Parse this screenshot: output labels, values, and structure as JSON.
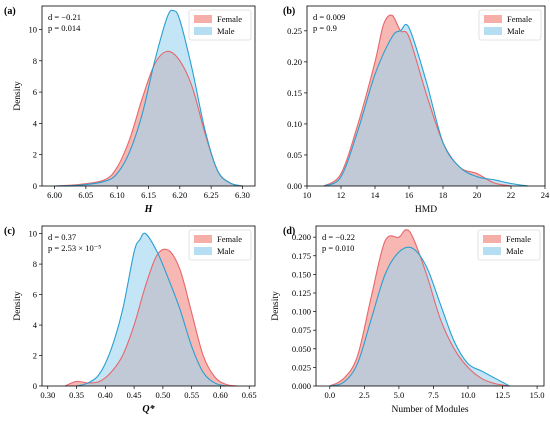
{
  "colors": {
    "female_fill": "#f4a09a",
    "female_line": "#e8666b",
    "male_fill": "#9dd3ee",
    "male_line": "#2a9fd0"
  },
  "chart_data": [
    {
      "type": "area",
      "panel": "(a)",
      "xlabel": "H",
      "xlabel_style": "italic-bold",
      "ylabel": "Density",
      "xlim": [
        5.98,
        6.32
      ],
      "ylim": [
        0,
        11.5
      ],
      "xticks": [
        6.0,
        6.05,
        6.1,
        6.15,
        6.2,
        6.25,
        6.3
      ],
      "xtick_labels": [
        "6.00",
        "6.05",
        "6.10",
        "6.15",
        "6.20",
        "6.25",
        "6.30"
      ],
      "yticks": [
        0,
        2,
        4,
        6,
        8,
        10
      ],
      "ytick_labels": [
        "0",
        "2",
        "4",
        "6",
        "8",
        "10"
      ],
      "stats": [
        "d = −0.21",
        "p = 0.014"
      ],
      "legend": [
        "Female",
        "Male"
      ],
      "legend_position": "top-right",
      "series": [
        {
          "name": "Female",
          "x": [
            6.0,
            6.04,
            6.08,
            6.1,
            6.12,
            6.14,
            6.16,
            6.18,
            6.2,
            6.22,
            6.24,
            6.26,
            6.28,
            6.3
          ],
          "y": [
            0.0,
            0.1,
            0.4,
            1.2,
            3.0,
            5.6,
            7.8,
            8.6,
            8.0,
            6.3,
            3.4,
            1.0,
            0.2,
            0.0
          ]
        },
        {
          "name": "Male",
          "x": [
            6.0,
            6.04,
            6.08,
            6.1,
            6.12,
            6.14,
            6.16,
            6.18,
            6.19,
            6.2,
            6.22,
            6.24,
            6.26,
            6.28,
            6.3
          ],
          "y": [
            0.0,
            0.05,
            0.3,
            0.8,
            2.2,
            4.6,
            8.0,
            10.8,
            11.2,
            10.6,
            7.4,
            3.6,
            1.0,
            0.2,
            0.0
          ]
        }
      ]
    },
    {
      "type": "area",
      "panel": "(b)",
      "xlabel": "HMD",
      "ylabel": "",
      "xlim": [
        10,
        24
      ],
      "ylim": [
        0,
        0.29
      ],
      "xticks": [
        10,
        12,
        14,
        16,
        18,
        20,
        22,
        24
      ],
      "xtick_labels": [
        "10",
        "12",
        "14",
        "16",
        "18",
        "20",
        "22",
        "24"
      ],
      "yticks": [
        0,
        0.05,
        0.1,
        0.15,
        0.2,
        0.25
      ],
      "ytick_labels": [
        "0.00",
        "0.05",
        "0.10",
        "0.15",
        "0.20",
        "0.25"
      ],
      "stats": [
        "d = 0.009",
        "p = 0.9"
      ],
      "legend": [
        "Female",
        "Male"
      ],
      "legend_position": "top-right",
      "series": [
        {
          "name": "Female",
          "x": [
            11,
            12,
            13,
            14,
            14.5,
            15,
            15.5,
            16,
            17,
            18,
            19,
            20,
            21,
            22
          ],
          "y": [
            0.0,
            0.02,
            0.1,
            0.2,
            0.26,
            0.275,
            0.25,
            0.24,
            0.15,
            0.07,
            0.03,
            0.02,
            0.005,
            0.0
          ]
        },
        {
          "name": "Male",
          "x": [
            11,
            12,
            13,
            14,
            15,
            15.5,
            16,
            17,
            18,
            19,
            20,
            21,
            22,
            23
          ],
          "y": [
            0.0,
            0.015,
            0.09,
            0.18,
            0.24,
            0.25,
            0.255,
            0.17,
            0.07,
            0.03,
            0.015,
            0.01,
            0.004,
            0.0
          ]
        }
      ]
    },
    {
      "type": "area",
      "panel": "(c)",
      "xlabel": "Q*",
      "xlabel_style": "italic-bold",
      "ylabel": "Density",
      "xlim": [
        0.29,
        0.66
      ],
      "ylim": [
        0,
        10.5
      ],
      "xticks": [
        0.3,
        0.35,
        0.4,
        0.45,
        0.5,
        0.55,
        0.6,
        0.65
      ],
      "xtick_labels": [
        "0.30",
        "0.35",
        "0.40",
        "0.45",
        "0.50",
        "0.55",
        "0.60",
        "0.65"
      ],
      "yticks": [
        0,
        2,
        4,
        6,
        8,
        10
      ],
      "ytick_labels": [
        "0",
        "2",
        "4",
        "6",
        "8",
        "10"
      ],
      "stats": [
        "d = 0.37",
        "p = 2.53 × 10⁻⁵"
      ],
      "legend": [
        "Female",
        "Male"
      ],
      "legend_position": "top-right",
      "series": [
        {
          "name": "Female",
          "x": [
            0.33,
            0.35,
            0.37,
            0.39,
            0.41,
            0.43,
            0.45,
            0.47,
            0.49,
            0.51,
            0.53,
            0.55,
            0.57,
            0.59,
            0.61,
            0.63
          ],
          "y": [
            0.0,
            0.3,
            0.2,
            0.3,
            0.9,
            2.0,
            4.0,
            6.6,
            8.6,
            8.9,
            7.6,
            4.8,
            2.0,
            0.6,
            0.1,
            0.0
          ]
        },
        {
          "name": "Male",
          "x": [
            0.35,
            0.37,
            0.39,
            0.41,
            0.43,
            0.45,
            0.46,
            0.47,
            0.49,
            0.51,
            0.53,
            0.55,
            0.57,
            0.59,
            0.61
          ],
          "y": [
            0.0,
            0.2,
            0.8,
            2.4,
            5.0,
            8.8,
            9.6,
            10.0,
            8.8,
            7.0,
            5.0,
            2.6,
            0.9,
            0.2,
            0.0
          ]
        }
      ]
    },
    {
      "type": "area",
      "panel": "(d)",
      "xlabel": "Number of Modules",
      "ylabel": "Density",
      "xlim": [
        -1,
        15.5
      ],
      "ylim": [
        0,
        0.215
      ],
      "xticks": [
        0,
        2.5,
        5,
        7.5,
        10,
        12.5,
        15
      ],
      "xtick_labels": [
        "0.0",
        "2.5",
        "5.0",
        "7.5",
        "10.0",
        "12.5",
        "15.0"
      ],
      "yticks": [
        0,
        0.025,
        0.05,
        0.075,
        0.1,
        0.125,
        0.15,
        0.175,
        0.2
      ],
      "ytick_labels": [
        "0.000",
        "0.025",
        "0.050",
        "0.075",
        "0.100",
        "0.125",
        "0.150",
        "0.175",
        "0.200"
      ],
      "stats": [
        "d = −0.22",
        "p = 0.010"
      ],
      "legend": [
        "Female",
        "Male"
      ],
      "legend_position": "top-right",
      "series": [
        {
          "name": "Female",
          "x": [
            0,
            1,
            2,
            3,
            4,
            5,
            5.5,
            6,
            7,
            8,
            9,
            10,
            11,
            12,
            13
          ],
          "y": [
            0.0,
            0.01,
            0.04,
            0.12,
            0.195,
            0.2,
            0.21,
            0.2,
            0.15,
            0.09,
            0.05,
            0.025,
            0.01,
            0.003,
            0.0
          ]
        },
        {
          "name": "Male",
          "x": [
            0,
            1,
            2,
            3,
            4,
            5,
            6,
            7,
            8,
            9,
            10,
            11,
            12,
            13
          ],
          "y": [
            0.0,
            0.005,
            0.03,
            0.09,
            0.15,
            0.18,
            0.185,
            0.16,
            0.11,
            0.06,
            0.03,
            0.02,
            0.01,
            0.0
          ]
        }
      ]
    }
  ]
}
